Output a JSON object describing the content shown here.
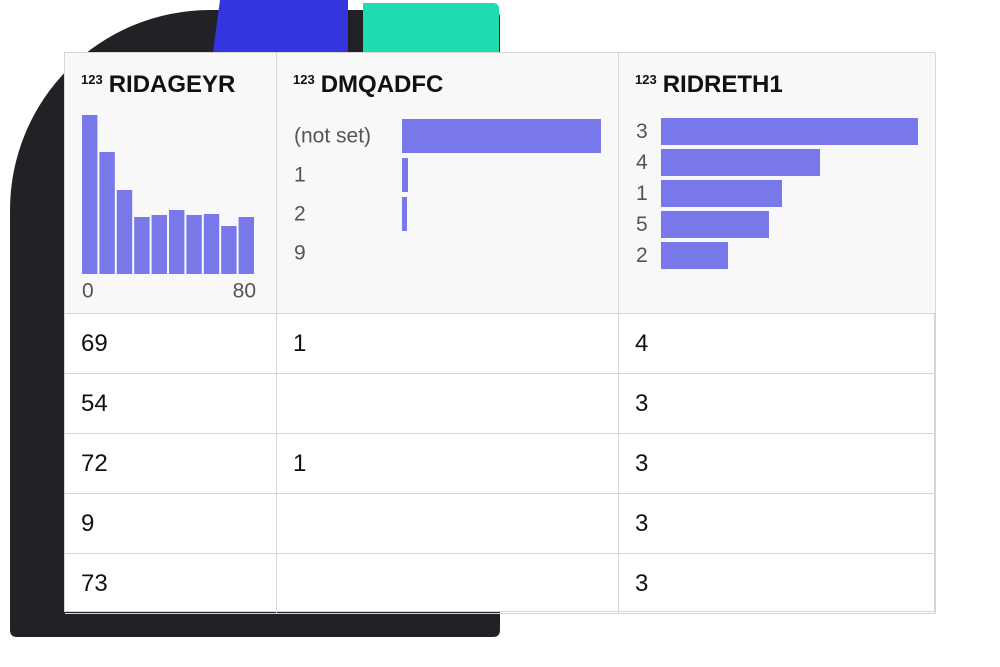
{
  "table": {
    "columns": [
      {
        "icon": "123",
        "name": "RIDAGEYR",
        "summary": {
          "type": "histogram",
          "bins": [
            0,
            8,
            16,
            24,
            32,
            40,
            48,
            56,
            64,
            72,
            80
          ],
          "values": [
            159,
            122,
            84,
            57,
            59,
            64,
            59,
            60,
            48,
            57
          ],
          "xlim": [
            0,
            80
          ],
          "xticks": [
            0,
            80
          ],
          "color": "#7878ea"
        }
      },
      {
        "icon": "123",
        "name": "DMQADFC",
        "summary": {
          "type": "bar",
          "categories": [
            "(not set)",
            "1",
            "2",
            "9"
          ],
          "values": [
            199,
            6,
            5,
            0
          ],
          "color": "#7878ea"
        }
      },
      {
        "icon": "123",
        "name": "RIDRETH1",
        "summary": {
          "type": "bar",
          "categories": [
            "3",
            "4",
            "1",
            "5",
            "2"
          ],
          "values": [
            257,
            159,
            121,
            108,
            67
          ],
          "color": "#7878ea"
        }
      }
    ],
    "rows": [
      [
        "69",
        "1",
        "4"
      ],
      [
        "54",
        null,
        "3"
      ],
      [
        "72",
        "1",
        "3"
      ],
      [
        "9",
        null,
        "3"
      ],
      [
        "73",
        null,
        "3"
      ]
    ]
  }
}
